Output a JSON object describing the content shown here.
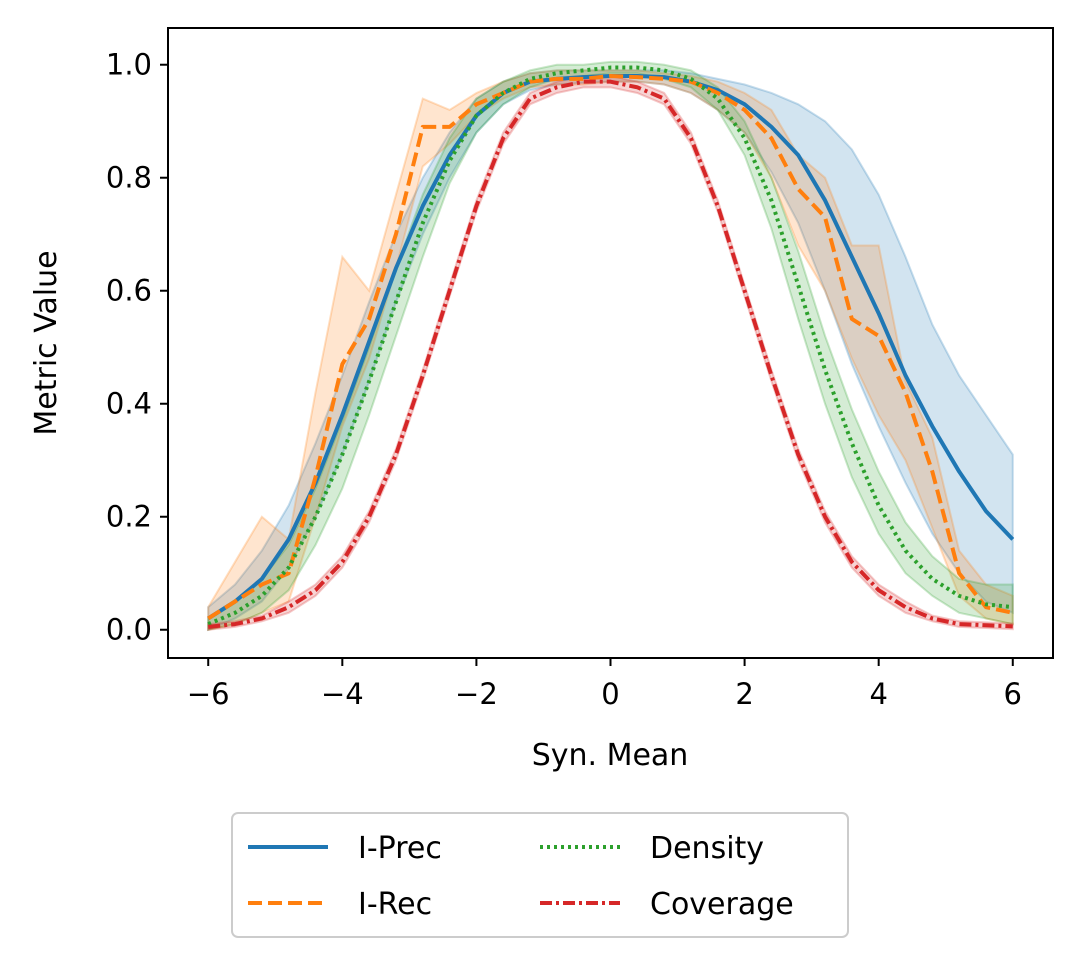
{
  "chart_data": {
    "type": "line",
    "title": "",
    "xlabel": "Syn. Mean",
    "ylabel": "Metric Value",
    "xlim": [
      -6.6,
      6.6
    ],
    "ylim": [
      -0.05,
      1.065
    ],
    "xticks": [
      -6,
      -4,
      -2,
      0,
      2,
      4,
      6
    ],
    "xtick_labels": [
      "−6",
      "−4",
      "−2",
      "0",
      "2",
      "4",
      "6"
    ],
    "yticks": [
      0.0,
      0.2,
      0.4,
      0.6,
      0.8,
      1.0
    ],
    "ytick_labels": [
      "0.0",
      "0.2",
      "0.4",
      "0.6",
      "0.8",
      "1.0"
    ],
    "grid": false,
    "legend_position": "below-center",
    "x": [
      -6.0,
      -5.6,
      -5.2,
      -4.8,
      -4.4,
      -4.0,
      -3.6,
      -3.2,
      -2.8,
      -2.4,
      -2.0,
      -1.6,
      -1.2,
      -0.8,
      -0.4,
      0.0,
      0.4,
      0.8,
      1.2,
      1.6,
      2.0,
      2.4,
      2.8,
      3.2,
      3.6,
      4.0,
      4.4,
      4.8,
      5.2,
      5.6,
      6.0
    ],
    "series": [
      {
        "name": "I-Prec",
        "color": "#1f77b4",
        "dash": "solid",
        "values": [
          0.02,
          0.05,
          0.09,
          0.16,
          0.26,
          0.38,
          0.51,
          0.64,
          0.75,
          0.84,
          0.91,
          0.95,
          0.97,
          0.975,
          0.978,
          0.98,
          0.98,
          0.978,
          0.97,
          0.955,
          0.93,
          0.89,
          0.84,
          0.76,
          0.66,
          0.56,
          0.45,
          0.36,
          0.28,
          0.21,
          0.16
        ],
        "lower": [
          0.0,
          0.02,
          0.05,
          0.11,
          0.2,
          0.31,
          0.44,
          0.58,
          0.7,
          0.8,
          0.88,
          0.93,
          0.955,
          0.965,
          0.968,
          0.97,
          0.97,
          0.965,
          0.95,
          0.92,
          0.88,
          0.81,
          0.72,
          0.6,
          0.47,
          0.36,
          0.26,
          0.17,
          0.1,
          0.05,
          0.03
        ],
        "upper": [
          0.04,
          0.08,
          0.14,
          0.22,
          0.33,
          0.45,
          0.58,
          0.7,
          0.8,
          0.88,
          0.94,
          0.97,
          0.985,
          0.99,
          0.99,
          0.99,
          0.99,
          0.99,
          0.985,
          0.975,
          0.965,
          0.95,
          0.93,
          0.9,
          0.85,
          0.77,
          0.66,
          0.54,
          0.45,
          0.38,
          0.31
        ]
      },
      {
        "name": "I-Rec",
        "color": "#ff7f0e",
        "dash": "dashed",
        "values": [
          0.02,
          0.05,
          0.08,
          0.1,
          0.27,
          0.47,
          0.55,
          0.7,
          0.89,
          0.89,
          0.93,
          0.95,
          0.97,
          0.975,
          0.975,
          0.98,
          0.978,
          0.975,
          0.97,
          0.95,
          0.92,
          0.87,
          0.78,
          0.73,
          0.55,
          0.52,
          0.42,
          0.28,
          0.1,
          0.04,
          0.03
        ],
        "lower": [
          0.0,
          0.01,
          0.03,
          0.05,
          0.2,
          0.36,
          0.48,
          0.64,
          0.82,
          0.86,
          0.91,
          0.94,
          0.96,
          0.965,
          0.965,
          0.97,
          0.97,
          0.965,
          0.95,
          0.92,
          0.88,
          0.8,
          0.68,
          0.6,
          0.48,
          0.38,
          0.3,
          0.18,
          0.06,
          0.02,
          0.01
        ],
        "upper": [
          0.04,
          0.12,
          0.2,
          0.16,
          0.42,
          0.66,
          0.6,
          0.77,
          0.94,
          0.92,
          0.95,
          0.97,
          0.985,
          0.99,
          0.99,
          0.99,
          0.99,
          0.985,
          0.98,
          0.97,
          0.95,
          0.92,
          0.84,
          0.8,
          0.68,
          0.68,
          0.44,
          0.34,
          0.14,
          0.08,
          0.06
        ]
      },
      {
        "name": "Density",
        "color": "#2ca02c",
        "dash": "dotted",
        "values": [
          0.01,
          0.03,
          0.06,
          0.11,
          0.2,
          0.31,
          0.44,
          0.58,
          0.72,
          0.83,
          0.91,
          0.95,
          0.975,
          0.985,
          0.99,
          0.995,
          0.995,
          0.99,
          0.975,
          0.94,
          0.87,
          0.76,
          0.61,
          0.46,
          0.33,
          0.22,
          0.14,
          0.09,
          0.06,
          0.045,
          0.04
        ],
        "lower": [
          0.0,
          0.01,
          0.03,
          0.07,
          0.15,
          0.25,
          0.38,
          0.52,
          0.66,
          0.79,
          0.88,
          0.93,
          0.96,
          0.975,
          0.98,
          0.985,
          0.985,
          0.975,
          0.96,
          0.92,
          0.84,
          0.71,
          0.55,
          0.4,
          0.27,
          0.17,
          0.1,
          0.06,
          0.03,
          0.02,
          0.01
        ],
        "upper": [
          0.02,
          0.05,
          0.09,
          0.15,
          0.25,
          0.37,
          0.5,
          0.64,
          0.77,
          0.87,
          0.94,
          0.97,
          0.99,
          1.0,
          1.0,
          1.005,
          1.005,
          1.0,
          0.99,
          0.96,
          0.9,
          0.8,
          0.67,
          0.52,
          0.39,
          0.28,
          0.19,
          0.13,
          0.09,
          0.08,
          0.08
        ]
      },
      {
        "name": "Coverage",
        "color": "#d62728",
        "dash": "dashdot",
        "values": [
          0.005,
          0.01,
          0.02,
          0.04,
          0.07,
          0.12,
          0.2,
          0.31,
          0.45,
          0.6,
          0.75,
          0.87,
          0.94,
          0.96,
          0.97,
          0.97,
          0.96,
          0.94,
          0.87,
          0.75,
          0.6,
          0.45,
          0.31,
          0.2,
          0.12,
          0.07,
          0.04,
          0.02,
          0.01,
          0.008,
          0.006
        ],
        "lower": [
          0.0,
          0.005,
          0.015,
          0.03,
          0.06,
          0.11,
          0.19,
          0.3,
          0.44,
          0.59,
          0.74,
          0.86,
          0.93,
          0.95,
          0.96,
          0.96,
          0.95,
          0.93,
          0.86,
          0.74,
          0.59,
          0.44,
          0.3,
          0.19,
          0.11,
          0.06,
          0.03,
          0.015,
          0.005,
          0.003,
          0.001
        ],
        "upper": [
          0.01,
          0.015,
          0.025,
          0.05,
          0.08,
          0.13,
          0.21,
          0.32,
          0.46,
          0.61,
          0.76,
          0.88,
          0.95,
          0.97,
          0.98,
          0.98,
          0.97,
          0.95,
          0.88,
          0.76,
          0.61,
          0.46,
          0.32,
          0.21,
          0.13,
          0.08,
          0.05,
          0.025,
          0.015,
          0.013,
          0.011
        ]
      }
    ],
    "legend": [
      {
        "label": "I-Prec",
        "series": 0
      },
      {
        "label": "Density",
        "series": 2
      },
      {
        "label": "I-Rec",
        "series": 1
      },
      {
        "label": "Coverage",
        "series": 3
      }
    ]
  }
}
